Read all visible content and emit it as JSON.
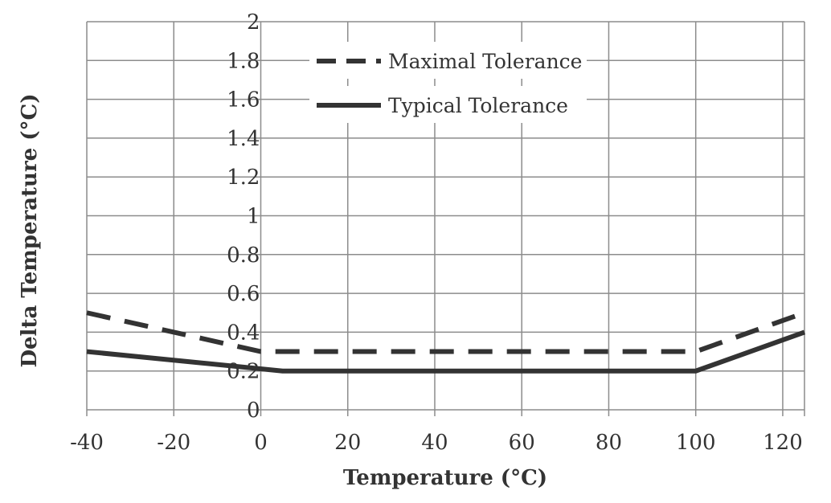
{
  "chart_data": {
    "type": "line",
    "xlabel": "Temperature (°C)",
    "ylabel": "Delta Temperature (°C)",
    "xlim": [
      -40,
      125
    ],
    "ylim": [
      0,
      2
    ],
    "xticks": [
      -40,
      -20,
      0,
      20,
      40,
      60,
      80,
      100,
      120
    ],
    "xtick_labels": [
      "-40",
      "-20",
      "0",
      "20",
      "40",
      "60",
      "80",
      "100",
      "120"
    ],
    "yticks": [
      0,
      0.2,
      0.4,
      0.6,
      0.8,
      1,
      1.2,
      1.4,
      1.6,
      1.8,
      2
    ],
    "ytick_labels": [
      "0",
      "0.2",
      "0.4",
      "0.6",
      "0.8",
      "1",
      "1.2",
      "1.4",
      "1.6",
      "1.8",
      "2"
    ],
    "grid": true,
    "legend_position": "top-center",
    "series": [
      {
        "name": "Maximal Tolerance",
        "style": "dashed",
        "color": "#333333",
        "x": [
          -40,
          0,
          100,
          125
        ],
        "y": [
          0.5,
          0.3,
          0.3,
          0.5
        ]
      },
      {
        "name": "Typical Tolerance",
        "style": "solid",
        "color": "#333333",
        "x": [
          -40,
          5,
          100,
          125
        ],
        "y": [
          0.3,
          0.2,
          0.2,
          0.4
        ]
      }
    ]
  }
}
